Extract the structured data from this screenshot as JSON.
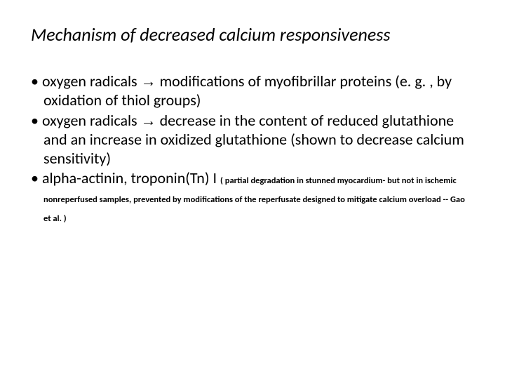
{
  "title": "Mechanism of decreased calcium responsiveness",
  "bullets": [
    {
      "pre": "oxygen radicals ",
      "arrow": "→",
      "post": " modifications of myofibrillar proteins (e. g. , by oxidation of thiol groups)"
    },
    {
      "pre": "oxygen radicals ",
      "arrow": "→",
      "post": " decrease in the content of reduced glutathione and an increase in oxidized glutathione (shown to decrease calcium sensitivity)"
    },
    {
      "pre": "alpha-actinin, troponin(Tn) I ",
      "arrow": "",
      "post": "",
      "note": "( partial degradation in stunned myocardium- but not in ischemic nonreperfused samples, prevented by modifications of the reperfusate designed to mitigate calcium overload -- Gao et al. )"
    }
  ]
}
